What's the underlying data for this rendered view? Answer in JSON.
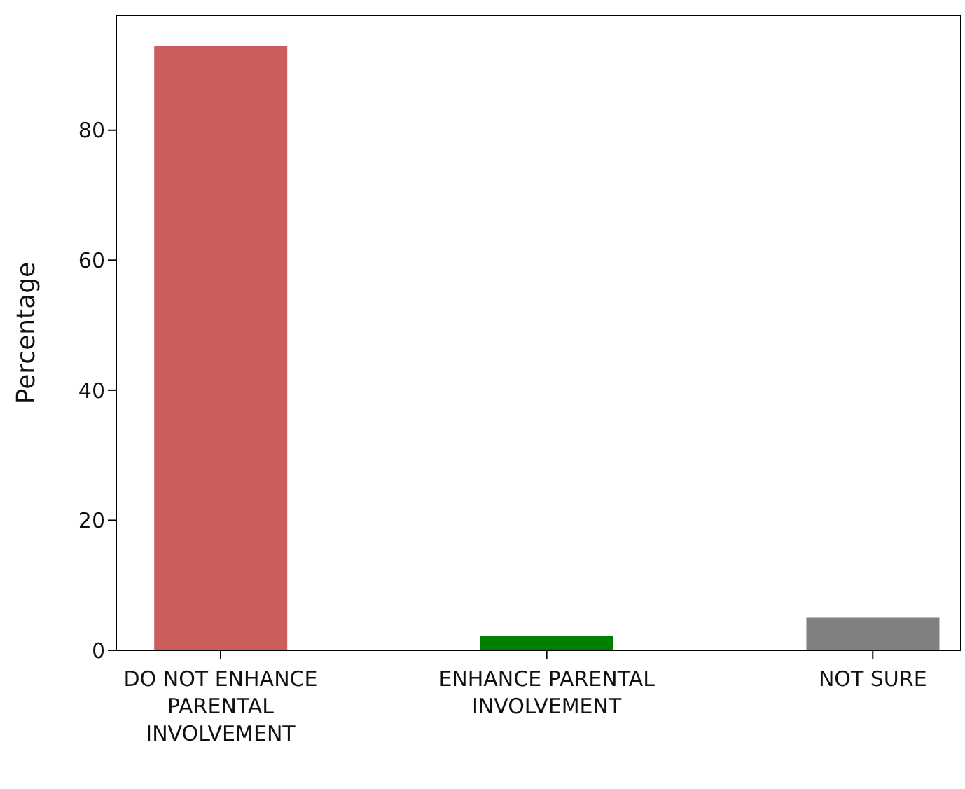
{
  "chart_data": {
    "type": "bar",
    "ylabel": "Percentage",
    "categories": [
      "DO NOT ENHANCE PARENTAL INVOLVEMENT",
      "ENHANCE PARENTAL INVOLVEMENT",
      "NOT SURE"
    ],
    "values": [
      93,
      2.2,
      5
    ],
    "colors": [
      "#cd5c5c",
      "#008000",
      "#808080"
    ],
    "ylim": [
      0,
      97.65
    ],
    "yticks": [
      0,
      20,
      40,
      60,
      80
    ]
  }
}
